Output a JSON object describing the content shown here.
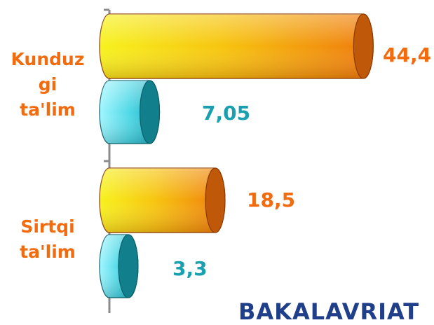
{
  "chart_data": {
    "type": "bar",
    "orientation": "horizontal",
    "categories": [
      "Kunduz\ngi\nta'lim",
      "Sirtqi\nta'lim"
    ],
    "series": [
      {
        "values": [
          44.4,
          18.5
        ],
        "labels": [
          "44,4",
          "18,5"
        ],
        "color": "#f26b0f"
      },
      {
        "values": [
          7.05,
          3.3
        ],
        "labels": [
          "7,05",
          "3,3"
        ],
        "color": "#1a9fae"
      }
    ],
    "grid": false,
    "legend": "none"
  },
  "footer": {
    "text": "BAKALAVRIAT"
  },
  "colors": {
    "orange_label": "#f26b0f",
    "teal_label": "#1a9fae",
    "axis": "#8c8c8c",
    "footer": "#1f3f8a"
  }
}
